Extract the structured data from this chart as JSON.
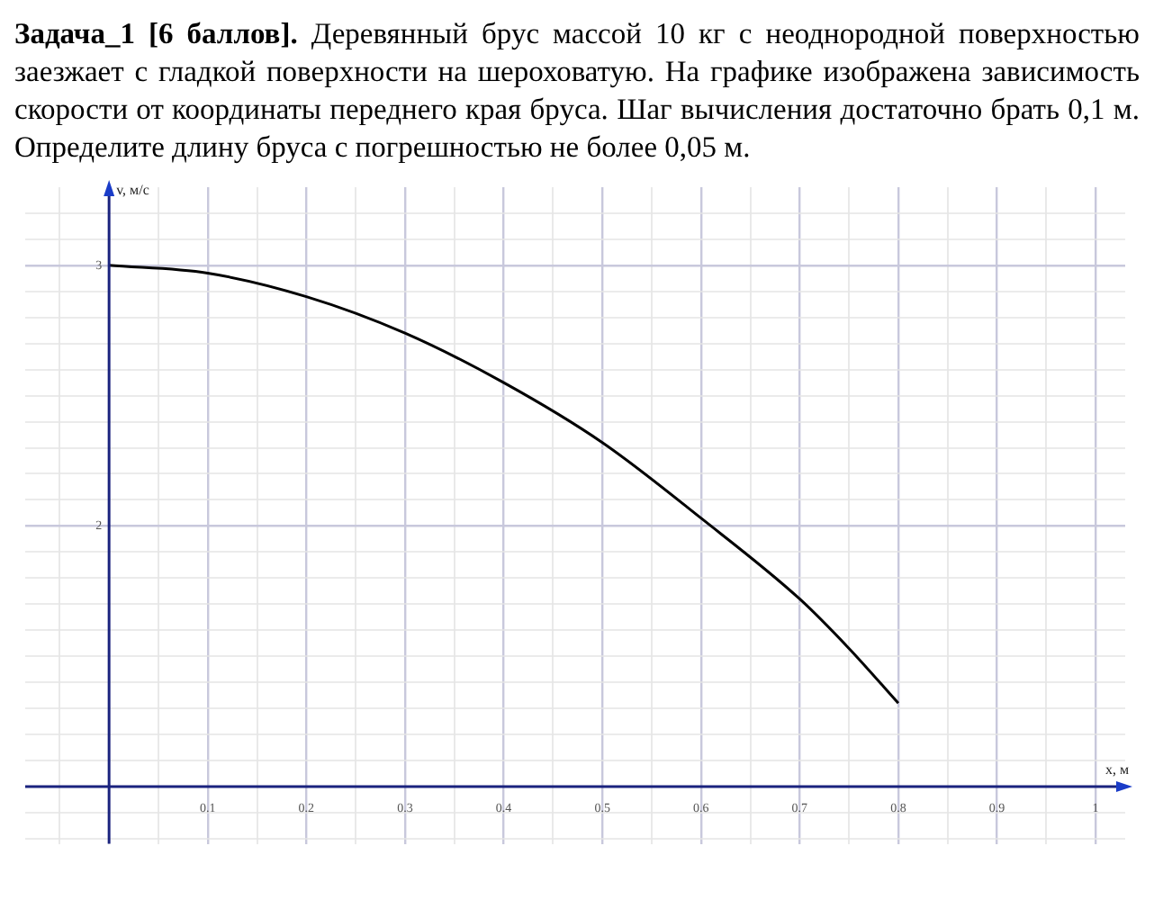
{
  "chart_data": {
    "type": "line",
    "title": "Задача_1 [6 баллов].",
    "subtitle": "Деревянный брус массой 10 кг с неоднородной поверхностью заезжает с гладкой поверхности на шероховатую. На графике изображена зависимость скорости от координаты переднего края бруса. Шаг вычисления достаточно брать 0,1 м. Определите длину бруса с погрешностью не более 0,05 м.",
    "xlabel": "x, м",
    "ylabel": "v, м/с",
    "x": [
      0,
      0.1,
      0.2,
      0.3,
      0.4,
      0.5,
      0.6,
      0.7,
      0.75,
      0.8
    ],
    "series": [
      {
        "color": "#000000",
        "values": [
          3.0,
          2.97,
          2.88,
          2.74,
          2.55,
          2.32,
          2.03,
          1.72,
          1.53,
          1.32
        ]
      }
    ],
    "xlim": [
      -0.085,
      1.03
    ],
    "ylim": [
      0.78,
      3.3
    ],
    "xticks": [
      {
        "value": -0.05,
        "label": null
      },
      {
        "value": 0,
        "label": null
      },
      {
        "value": 0.05,
        "label": null
      },
      0.1,
      {
        "value": 0.15,
        "label": null
      },
      0.2,
      {
        "value": 0.25,
        "label": null
      },
      0.3,
      {
        "value": 0.35,
        "label": null
      },
      0.4,
      {
        "value": 0.45,
        "label": null
      },
      0.5,
      {
        "value": 0.55,
        "label": null
      },
      0.6,
      {
        "value": 0.65,
        "label": null
      },
      0.7,
      {
        "value": 0.75,
        "label": null
      },
      0.8,
      {
        "value": 0.85,
        "label": null
      },
      0.9,
      {
        "value": 0.95,
        "label": null
      },
      1
    ],
    "yticks": [
      {
        "value": 0.8,
        "label": null
      },
      {
        "value": 0.9,
        "label": null
      },
      {
        "value": 1,
        "label": null
      },
      {
        "value": 1.1,
        "label": null
      },
      {
        "value": 1.2,
        "label": null
      },
      {
        "value": 1.3,
        "label": null
      },
      {
        "value": 1.4,
        "label": null
      },
      {
        "value": 1.5,
        "label": null
      },
      {
        "value": 1.6,
        "label": null
      },
      {
        "value": 1.7,
        "label": null
      },
      {
        "value": 1.8,
        "label": null
      },
      {
        "value": 1.9,
        "label": null
      },
      2,
      {
        "value": 2.1,
        "label": null
      },
      {
        "value": 2.2,
        "label": null
      },
      {
        "value": 2.3,
        "label": null
      },
      {
        "value": 2.4,
        "label": null
      },
      {
        "value": 2.5,
        "label": null
      },
      {
        "value": 2.6,
        "label": null
      },
      {
        "value": 2.7,
        "label": null
      },
      {
        "value": 2.8,
        "label": null
      },
      {
        "value": 2.9,
        "label": null
      },
      3,
      {
        "value": 3.1,
        "label": null
      },
      {
        "value": 3.2,
        "label": null
      }
    ],
    "grid": true,
    "legend": false,
    "marker": "none",
    "line_style": "solid"
  }
}
